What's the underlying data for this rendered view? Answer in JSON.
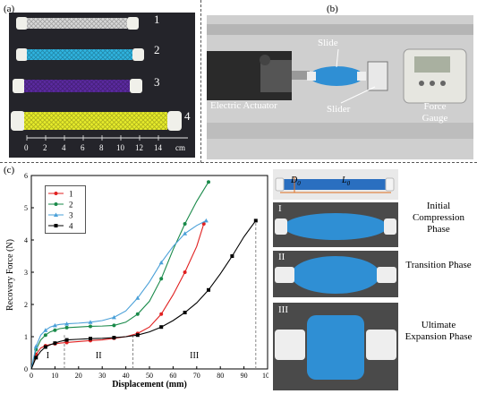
{
  "panels": {
    "a": "(a)",
    "b": "(b)",
    "c": "(c)"
  },
  "panel_a": {
    "sample_numbers": [
      "1",
      "2",
      "3",
      "4"
    ],
    "ruler_ticks": [
      "0",
      "2",
      "4",
      "6",
      "8",
      "10",
      "12",
      "14"
    ],
    "ruler_unit": "cm",
    "sample_colors": [
      "#d8d8d8",
      "#2fb4e0",
      "#5b2aa0",
      "#e7ec2a"
    ]
  },
  "panel_b": {
    "labels": {
      "slide": "Slide",
      "electric_actuator": "Electric Actuator",
      "slider": "Slider",
      "force_gauge": "Force Gauge"
    }
  },
  "panel_c_right": {
    "dimension_D": "D",
    "dimension_D_sub": "0",
    "dimension_L": "L",
    "dimension_L_sub": "0",
    "phases": [
      {
        "numeral": "I",
        "name": "Initial Compression Phase"
      },
      {
        "numeral": "II",
        "name": "Transition Phase"
      },
      {
        "numeral": "III",
        "name": "Ultimate Expansion Phase"
      }
    ]
  },
  "chart_data": {
    "type": "line",
    "title": "",
    "xlabel": "Displacement (mm)",
    "ylabel": "Recovery Force (N)",
    "xlim": [
      0,
      100
    ],
    "ylim": [
      0,
      6
    ],
    "xticks": [
      0,
      10,
      20,
      30,
      40,
      50,
      60,
      70,
      80,
      90,
      100
    ],
    "yticks": [
      0,
      1,
      2,
      3,
      4,
      5,
      6
    ],
    "legend_position": "top-left",
    "regions": [
      {
        "label": "I",
        "x_end": 14
      },
      {
        "label": "II",
        "x_end": 43
      },
      {
        "label": "III",
        "x_end": 95
      }
    ],
    "series": [
      {
        "name": "1",
        "color": "#e02020",
        "marker": "circle",
        "x": [
          0,
          2,
          4,
          6,
          8,
          10,
          12,
          15,
          20,
          25,
          30,
          35,
          40,
          45,
          50,
          55,
          60,
          65,
          70,
          73
        ],
        "y": [
          0,
          0.45,
          0.65,
          0.72,
          0.76,
          0.78,
          0.8,
          0.82,
          0.85,
          0.88,
          0.9,
          0.95,
          1.0,
          1.1,
          1.3,
          1.7,
          2.3,
          3.0,
          3.8,
          4.5
        ]
      },
      {
        "name": "2",
        "color": "#1a8a4a",
        "marker": "circle",
        "x": [
          0,
          2,
          4,
          6,
          8,
          10,
          12,
          15,
          20,
          25,
          30,
          35,
          40,
          45,
          50,
          55,
          60,
          65,
          70,
          75
        ],
        "y": [
          0,
          0.6,
          0.9,
          1.05,
          1.15,
          1.2,
          1.25,
          1.28,
          1.3,
          1.32,
          1.33,
          1.35,
          1.45,
          1.7,
          2.1,
          2.8,
          3.7,
          4.5,
          5.2,
          5.8
        ]
      },
      {
        "name": "3",
        "color": "#4aa0d8",
        "marker": "triangle",
        "x": [
          0,
          2,
          4,
          6,
          8,
          10,
          12,
          15,
          20,
          25,
          30,
          35,
          40,
          45,
          50,
          55,
          60,
          65,
          70,
          74
        ],
        "y": [
          0,
          0.7,
          1.05,
          1.2,
          1.3,
          1.35,
          1.38,
          1.4,
          1.42,
          1.45,
          1.5,
          1.6,
          1.8,
          2.2,
          2.7,
          3.3,
          3.8,
          4.2,
          4.45,
          4.6
        ]
      },
      {
        "name": "4",
        "color": "#000000",
        "marker": "square",
        "x": [
          0,
          2,
          4,
          6,
          8,
          10,
          12,
          15,
          20,
          25,
          30,
          35,
          40,
          45,
          50,
          55,
          60,
          65,
          70,
          75,
          80,
          85,
          90,
          95
        ],
        "y": [
          0,
          0.35,
          0.55,
          0.68,
          0.75,
          0.8,
          0.85,
          0.9,
          0.92,
          0.94,
          0.95,
          0.97,
          1.0,
          1.05,
          1.15,
          1.3,
          1.5,
          1.75,
          2.05,
          2.45,
          2.95,
          3.5,
          4.1,
          4.6
        ]
      }
    ]
  }
}
